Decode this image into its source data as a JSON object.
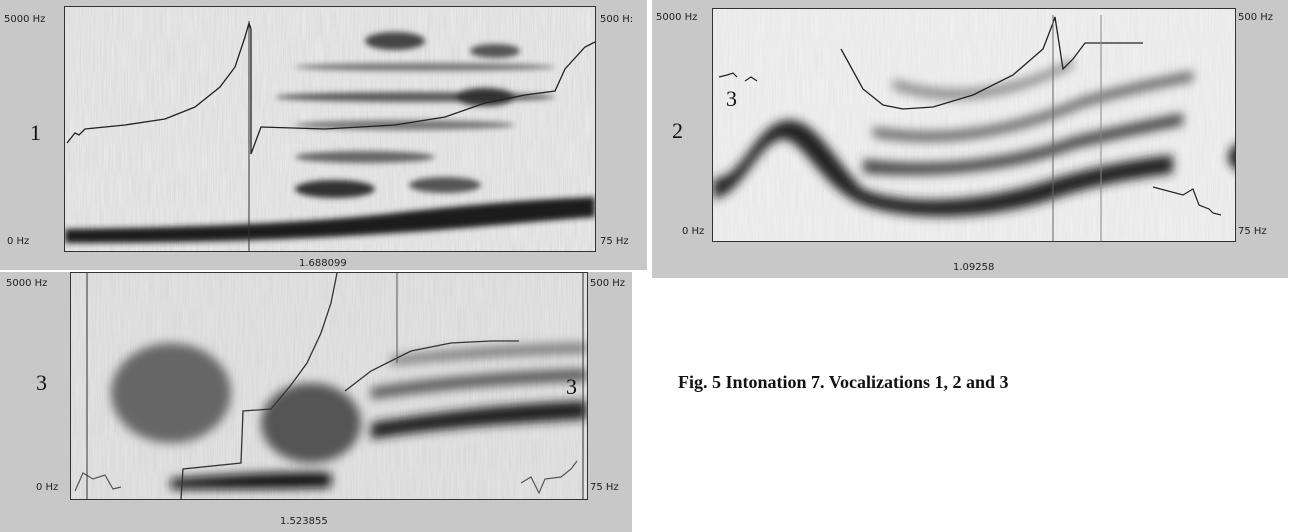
{
  "caption": "Fig. 5  Intonation 7. Vocalizations 1, 2 and 3",
  "panels": [
    {
      "id": "1",
      "number_label": "1",
      "freq_top_left": "5000 Hz",
      "freq_bottom_left": "0 Hz",
      "pitch_top_right": "500 H:",
      "pitch_bottom_right": "75 Hz",
      "time_value": "1.688099"
    },
    {
      "id": "2",
      "number_label": "2",
      "inset_label": "3",
      "freq_top_left": "5000 Hz",
      "freq_bottom_left": "0 Hz",
      "pitch_top_right": "500 Hz",
      "pitch_bottom_right": "75 Hz",
      "time_value": "1.09258"
    },
    {
      "id": "3",
      "number_label": "3",
      "inset_label": "3",
      "freq_top_left": "5000 Hz",
      "freq_bottom_left": "0 Hz",
      "pitch_top_right": "500 Hz",
      "pitch_bottom_right": "75 Hz",
      "time_value": "1.523855"
    }
  ]
}
